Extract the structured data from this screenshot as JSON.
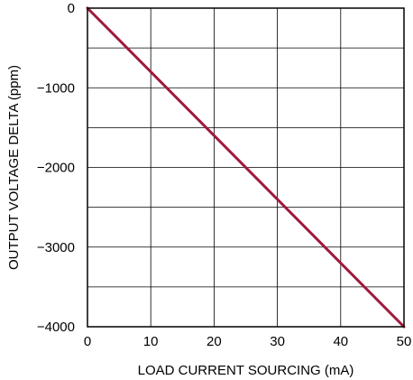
{
  "chart_data": {
    "type": "line",
    "title": "",
    "xlabel": "LOAD CURRENT SOURCING (mA)",
    "ylabel": "OUTPUT VOLTAGE DELTA (ppm)",
    "xlim": [
      0,
      50
    ],
    "ylim": [
      -4000,
      0
    ],
    "x_ticks": [
      0,
      10,
      20,
      30,
      40,
      50
    ],
    "y_ticks": [
      0,
      -1000,
      -2000,
      -3000,
      -4000
    ],
    "x_tick_labels": [
      "0",
      "10",
      "20",
      "30",
      "40",
      "50"
    ],
    "y_tick_labels": [
      "0",
      "−1000",
      "−2000",
      "−3000",
      "−4000"
    ],
    "grid": true,
    "series": [
      {
        "color": "#a0193c",
        "x": [
          0,
          10,
          20,
          30,
          40,
          50
        ],
        "y": [
          0,
          -800,
          -1600,
          -2400,
          -3200,
          -4000
        ]
      }
    ]
  }
}
